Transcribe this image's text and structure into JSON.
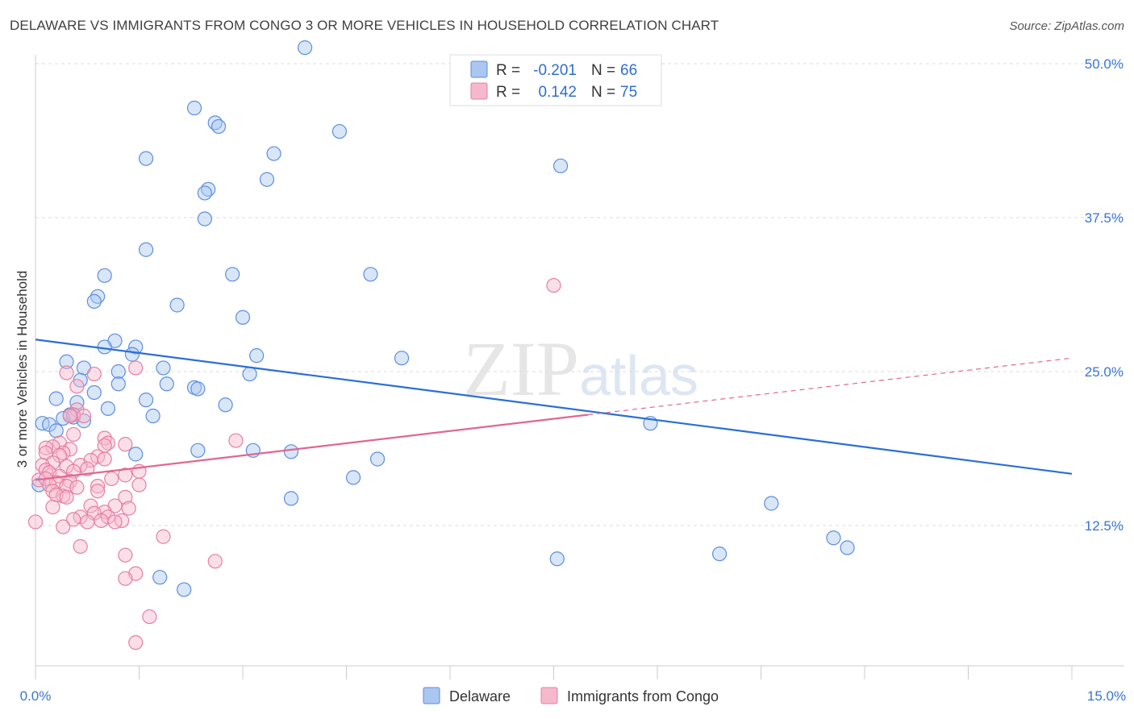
{
  "header": {
    "title": "DELAWARE VS IMMIGRANTS FROM CONGO 3 OR MORE VEHICLES IN HOUSEHOLD CORRELATION CHART",
    "source": "Source: ZipAtlas.com"
  },
  "watermark": "ZIPatlas",
  "legend_box": {
    "rows": [
      {
        "r_label": "R =",
        "r_value": "-0.201",
        "n_label": "N =",
        "n_value": "66"
      },
      {
        "r_label": "R =",
        "r_value": "0.142",
        "n_label": "N =",
        "n_value": "75"
      }
    ]
  },
  "bottom_legend": {
    "items": [
      {
        "label": "Delaware"
      },
      {
        "label": "Immigrants from Congo"
      }
    ]
  },
  "colors": {
    "delaware_fill": "#a9c7f0",
    "delaware_stroke": "#5b8ee0",
    "delaware_line": "#2a6fd6",
    "congo_fill": "#f6b8cc",
    "congo_stroke": "#e57fa1",
    "congo_line": "#e0678f",
    "grid": "#dddddd",
    "tick_text": "#3a74d2"
  },
  "chart_data": {
    "type": "scatter",
    "title": "DELAWARE VS IMMIGRANTS FROM CONGO 3 OR MORE VEHICLES IN HOUSEHOLD CORRELATION CHART",
    "xlabel": "",
    "ylabel": "3 or more Vehicles in Household",
    "xlim": [
      0.0,
      15.0
    ],
    "ylim": [
      0.0,
      50.0
    ],
    "x_tick_labels": [
      "0.0%",
      "15.0%"
    ],
    "y_tick_values": [
      12.5,
      25.0,
      37.5,
      50.0
    ],
    "y_tick_labels": [
      "12.5%",
      "25.0%",
      "37.5%",
      "50.0%"
    ],
    "grid": true,
    "legend_position": "top-center",
    "series": [
      {
        "name": "Delaware",
        "R": -0.201,
        "N": 66,
        "trend": {
          "x": [
            0.0,
            15.0
          ],
          "y": [
            27.6,
            16.7
          ]
        },
        "points": [
          [
            3.9,
            51.3
          ],
          [
            2.3,
            46.4
          ],
          [
            2.6,
            45.2
          ],
          [
            2.65,
            44.9
          ],
          [
            4.4,
            44.5
          ],
          [
            3.45,
            42.7
          ],
          [
            1.6,
            42.3
          ],
          [
            7.6,
            41.7
          ],
          [
            3.35,
            40.6
          ],
          [
            2.5,
            39.8
          ],
          [
            2.45,
            39.5
          ],
          [
            2.45,
            37.4
          ],
          [
            1.6,
            34.9
          ],
          [
            1.0,
            32.8
          ],
          [
            4.85,
            32.9
          ],
          [
            2.85,
            32.9
          ],
          [
            0.9,
            31.1
          ],
          [
            0.85,
            30.7
          ],
          [
            2.05,
            30.4
          ],
          [
            3.0,
            29.4
          ],
          [
            1.15,
            27.5
          ],
          [
            1.0,
            27.0
          ],
          [
            1.45,
            27.0
          ],
          [
            1.4,
            26.4
          ],
          [
            3.2,
            26.3
          ],
          [
            5.3,
            26.1
          ],
          [
            0.45,
            25.8
          ],
          [
            0.7,
            25.3
          ],
          [
            1.85,
            25.3
          ],
          [
            1.2,
            25.0
          ],
          [
            3.1,
            24.8
          ],
          [
            0.65,
            24.3
          ],
          [
            1.2,
            24.0
          ],
          [
            1.9,
            24.0
          ],
          [
            2.3,
            23.7
          ],
          [
            2.35,
            23.6
          ],
          [
            0.85,
            23.3
          ],
          [
            0.3,
            22.8
          ],
          [
            1.6,
            22.7
          ],
          [
            0.6,
            22.5
          ],
          [
            2.75,
            22.3
          ],
          [
            1.05,
            22.0
          ],
          [
            0.5,
            21.5
          ],
          [
            0.55,
            21.3
          ],
          [
            1.7,
            21.4
          ],
          [
            0.4,
            21.2
          ],
          [
            0.7,
            21.0
          ],
          [
            0.1,
            20.8
          ],
          [
            0.2,
            20.7
          ],
          [
            0.3,
            20.2
          ],
          [
            8.9,
            20.8
          ],
          [
            2.35,
            18.6
          ],
          [
            3.15,
            18.6
          ],
          [
            3.7,
            18.5
          ],
          [
            1.45,
            18.3
          ],
          [
            4.95,
            17.9
          ],
          [
            0.05,
            15.8
          ],
          [
            4.6,
            16.4
          ],
          [
            3.7,
            14.7
          ],
          [
            10.65,
            14.3
          ],
          [
            11.55,
            11.5
          ],
          [
            11.75,
            10.7
          ],
          [
            9.9,
            10.2
          ],
          [
            7.55,
            9.8
          ],
          [
            1.8,
            8.3
          ],
          [
            2.15,
            7.3
          ]
        ]
      },
      {
        "name": "Immigrants from Congo",
        "R": 0.142,
        "N": 75,
        "trend": {
          "x": [
            0.0,
            8.0
          ],
          "y": [
            16.2,
            21.5
          ]
        },
        "trend_dashed": {
          "x": [
            8.0,
            15.0
          ],
          "y": [
            21.5,
            26.1
          ]
        },
        "points": [
          [
            7.5,
            32.0
          ],
          [
            1.45,
            25.3
          ],
          [
            0.45,
            24.9
          ],
          [
            0.85,
            24.8
          ],
          [
            0.6,
            23.8
          ],
          [
            0.6,
            21.9
          ],
          [
            0.55,
            21.5
          ],
          [
            0.5,
            21.4
          ],
          [
            0.7,
            21.4
          ],
          [
            2.9,
            19.4
          ],
          [
            0.55,
            19.9
          ],
          [
            1.0,
            19.6
          ],
          [
            0.35,
            19.2
          ],
          [
            1.05,
            19.2
          ],
          [
            1.0,
            19.0
          ],
          [
            1.3,
            19.1
          ],
          [
            0.25,
            18.9
          ],
          [
            0.15,
            18.8
          ],
          [
            0.5,
            18.7
          ],
          [
            0.4,
            18.4
          ],
          [
            0.15,
            18.4
          ],
          [
            0.35,
            18.2
          ],
          [
            0.9,
            18.1
          ],
          [
            0.8,
            17.8
          ],
          [
            1.0,
            17.9
          ],
          [
            0.25,
            17.6
          ],
          [
            0.1,
            17.4
          ],
          [
            0.65,
            17.4
          ],
          [
            0.45,
            17.3
          ],
          [
            0.15,
            17.0
          ],
          [
            0.75,
            17.1
          ],
          [
            0.55,
            16.9
          ],
          [
            0.2,
            16.8
          ],
          [
            1.3,
            16.6
          ],
          [
            0.35,
            16.5
          ],
          [
            0.05,
            16.2
          ],
          [
            0.15,
            16.3
          ],
          [
            0.5,
            16.1
          ],
          [
            0.3,
            16.0
          ],
          [
            0.45,
            15.7
          ],
          [
            1.5,
            15.8
          ],
          [
            1.1,
            16.3
          ],
          [
            0.2,
            15.8
          ],
          [
            0.6,
            15.6
          ],
          [
            0.9,
            15.7
          ],
          [
            0.25,
            15.3
          ],
          [
            0.4,
            14.9
          ],
          [
            0.3,
            15.0
          ],
          [
            0.45,
            14.8
          ],
          [
            1.3,
            14.8
          ],
          [
            1.15,
            14.1
          ],
          [
            0.8,
            14.1
          ],
          [
            1.35,
            13.9
          ],
          [
            1.0,
            13.6
          ],
          [
            0.85,
            13.5
          ],
          [
            0.65,
            13.2
          ],
          [
            1.05,
            13.2
          ],
          [
            1.25,
            12.9
          ],
          [
            0.95,
            12.9
          ],
          [
            1.15,
            12.8
          ],
          [
            0.0,
            12.8
          ],
          [
            0.75,
            12.8
          ],
          [
            0.4,
            12.4
          ],
          [
            1.85,
            11.6
          ],
          [
            0.65,
            10.8
          ],
          [
            1.3,
            10.1
          ],
          [
            2.6,
            9.6
          ],
          [
            1.45,
            8.6
          ],
          [
            1.3,
            8.2
          ],
          [
            1.65,
            5.1
          ],
          [
            1.45,
            3.0
          ],
          [
            0.55,
            13.0
          ],
          [
            0.25,
            14.0
          ],
          [
            0.9,
            15.3
          ],
          [
            1.5,
            16.9
          ]
        ]
      }
    ]
  }
}
